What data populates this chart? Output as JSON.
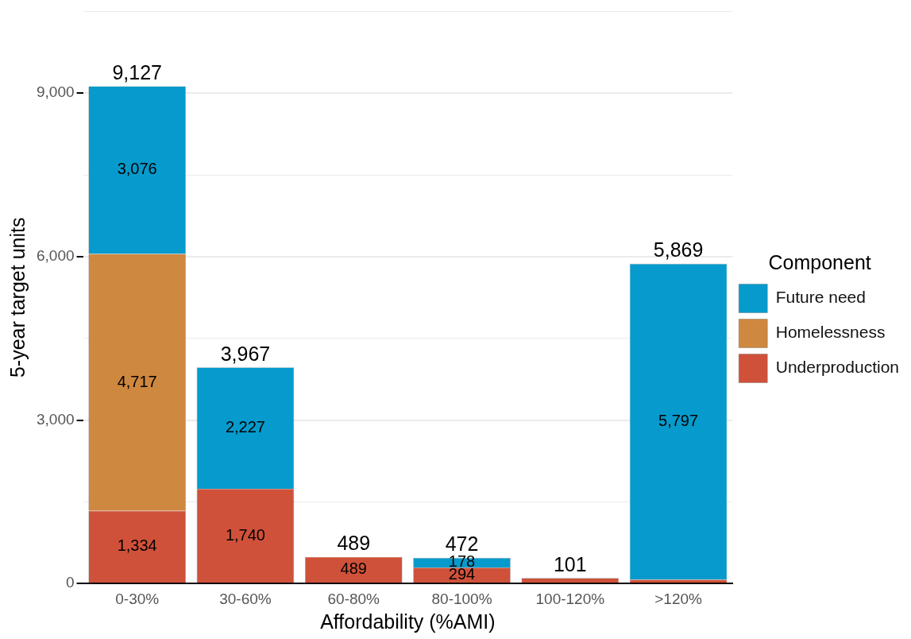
{
  "chart_data": {
    "type": "bar",
    "stacked": true,
    "xlabel": "Affordability (%AMI)",
    "ylabel": "5-year target units",
    "legend_title": "Component",
    "legend": "right",
    "grid": "y",
    "categories": [
      "0-30%",
      "30-60%",
      "60-80%",
      "80-100%",
      "100-120%",
      ">120%"
    ],
    "ylim": [
      0,
      10500
    ],
    "yticks": [
      {
        "value": 0,
        "label": "0"
      },
      {
        "value": 1500,
        "label": null
      },
      {
        "value": 3000,
        "label": "3,000"
      },
      {
        "value": 4500,
        "label": null
      },
      {
        "value": 6000,
        "label": "6,000"
      },
      {
        "value": 7500,
        "label": null
      },
      {
        "value": 9000,
        "label": "9,000"
      },
      {
        "value": 10500,
        "label": null
      }
    ],
    "series": [
      {
        "name": "Underproduction",
        "color": "#d0513a",
        "values": [
          1334,
          1740,
          489,
          294,
          101,
          72
        ],
        "value_labels": [
          "1,334",
          "1,740",
          "489",
          "294",
          null,
          null
        ]
      },
      {
        "name": "Homelessness",
        "color": "#cf883f",
        "values": [
          4717,
          0,
          0,
          0,
          0,
          0
        ],
        "value_labels": [
          "4,717",
          null,
          null,
          null,
          null,
          null
        ]
      },
      {
        "name": "Future need",
        "color": "#069bcc",
        "values": [
          3076,
          2227,
          0,
          178,
          0,
          5797
        ],
        "value_labels": [
          "3,076",
          "2,227",
          null,
          "178",
          null,
          "5,797"
        ]
      }
    ],
    "totals": [
      "9,127",
      "3,967",
      "489",
      "472",
      "101",
      "5,869"
    ]
  }
}
